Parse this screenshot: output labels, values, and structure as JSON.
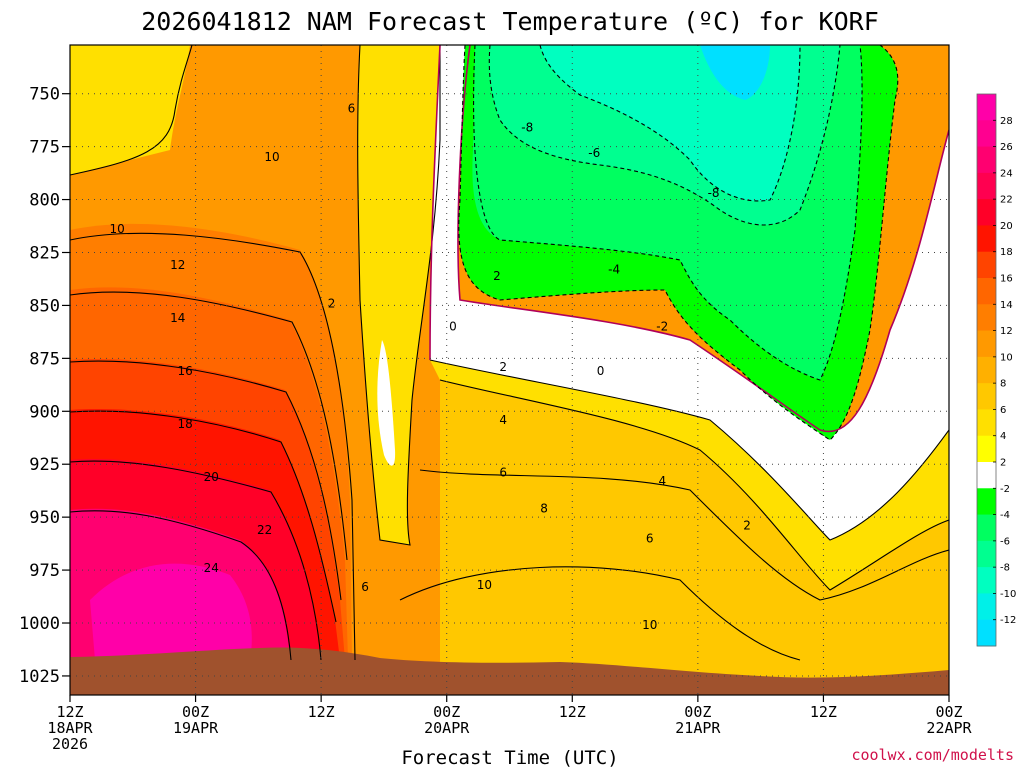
{
  "chart_data": {
    "type": "contour",
    "title": "2026041812 NAM Forecast Temperature (ºC) for KORF",
    "xlabel": "Forecast Time (UTC)",
    "credit": "coolwx.com/modelts",
    "x_hours": [
      0,
      12,
      24,
      36,
      48,
      60,
      72,
      84
    ],
    "x_ticks": [
      {
        "hour": 0,
        "lines": [
          "12Z",
          "18APR",
          "2026"
        ]
      },
      {
        "hour": 12,
        "lines": [
          "00Z",
          "19APR"
        ]
      },
      {
        "hour": 24,
        "lines": [
          "12Z"
        ]
      },
      {
        "hour": 36,
        "lines": [
          "00Z",
          "20APR"
        ]
      },
      {
        "hour": 48,
        "lines": [
          "12Z"
        ]
      },
      {
        "hour": 60,
        "lines": [
          "00Z",
          "21APR"
        ]
      },
      {
        "hour": 72,
        "lines": [
          "12Z"
        ]
      },
      {
        "hour": 84,
        "lines": [
          "00Z",
          "22APR"
        ]
      }
    ],
    "y_ticks": [
      750,
      775,
      800,
      825,
      850,
      875,
      900,
      925,
      950,
      975,
      1000,
      1025
    ],
    "ylim": [
      727,
      1034
    ],
    "colorbar": {
      "labels": [
        "28",
        "26",
        "24",
        "22",
        "20",
        "18",
        "16",
        "14",
        "12",
        "10",
        "8",
        "6",
        "4",
        "2",
        "-2",
        "-4",
        "-6",
        "-8",
        "-10",
        "-12"
      ],
      "colors": [
        "#ff00a8",
        "#ff0090",
        "#ff0070",
        "#ff0050",
        "#ff0028",
        "#ff1400",
        "#ff4400",
        "#ff6600",
        "#ff7e00",
        "#ff9900",
        "#ffb000",
        "#ffc800",
        "#ffe000",
        "#ffff00",
        "#ffffff",
        "#00ff00",
        "#00ff60",
        "#00ff90",
        "#00ffc0",
        "#00f0e8",
        "#00e0ff"
      ]
    },
    "contour_labels": [
      {
        "value": "6",
        "h": 26.9,
        "p": 757
      },
      {
        "value": "10",
        "h": 19.3,
        "p": 780
      },
      {
        "value": "10",
        "h": 4.5,
        "p": 814
      },
      {
        "value": "12",
        "h": 10.3,
        "p": 831
      },
      {
        "value": "14",
        "h": 10.3,
        "p": 856
      },
      {
        "value": "16",
        "h": 11.0,
        "p": 881
      },
      {
        "value": "18",
        "h": 11.0,
        "p": 906
      },
      {
        "value": "20",
        "h": 13.5,
        "p": 931
      },
      {
        "value": "22",
        "h": 18.6,
        "p": 956
      },
      {
        "value": "24",
        "h": 13.5,
        "p": 974
      },
      {
        "value": "2",
        "h": 25.0,
        "p": 849
      },
      {
        "value": "-8",
        "h": 43.7,
        "p": 766
      },
      {
        "value": "-6",
        "h": 50.1,
        "p": 778
      },
      {
        "value": "-8",
        "h": 61.5,
        "p": 797
      },
      {
        "value": "2",
        "h": 40.8,
        "p": 836
      },
      {
        "value": "-4",
        "h": 52.0,
        "p": 833
      },
      {
        "value": "0",
        "h": 36.6,
        "p": 860
      },
      {
        "value": "-2",
        "h": 56.6,
        "p": 860
      },
      {
        "value": "2",
        "h": 41.4,
        "p": 879
      },
      {
        "value": "0",
        "h": 50.7,
        "p": 881
      },
      {
        "value": "4",
        "h": 41.4,
        "p": 904
      },
      {
        "value": "6",
        "h": 41.4,
        "p": 929
      },
      {
        "value": "4",
        "h": 56.6,
        "p": 933
      },
      {
        "value": "8",
        "h": 45.3,
        "p": 946
      },
      {
        "value": "2",
        "h": 64.7,
        "p": 954
      },
      {
        "value": "6",
        "h": 55.4,
        "p": 960
      },
      {
        "value": "6",
        "h": 28.2,
        "p": 983
      },
      {
        "value": "10",
        "h": 39.6,
        "p": 982
      },
      {
        "value": "10",
        "h": 55.4,
        "p": 1001
      }
    ]
  }
}
